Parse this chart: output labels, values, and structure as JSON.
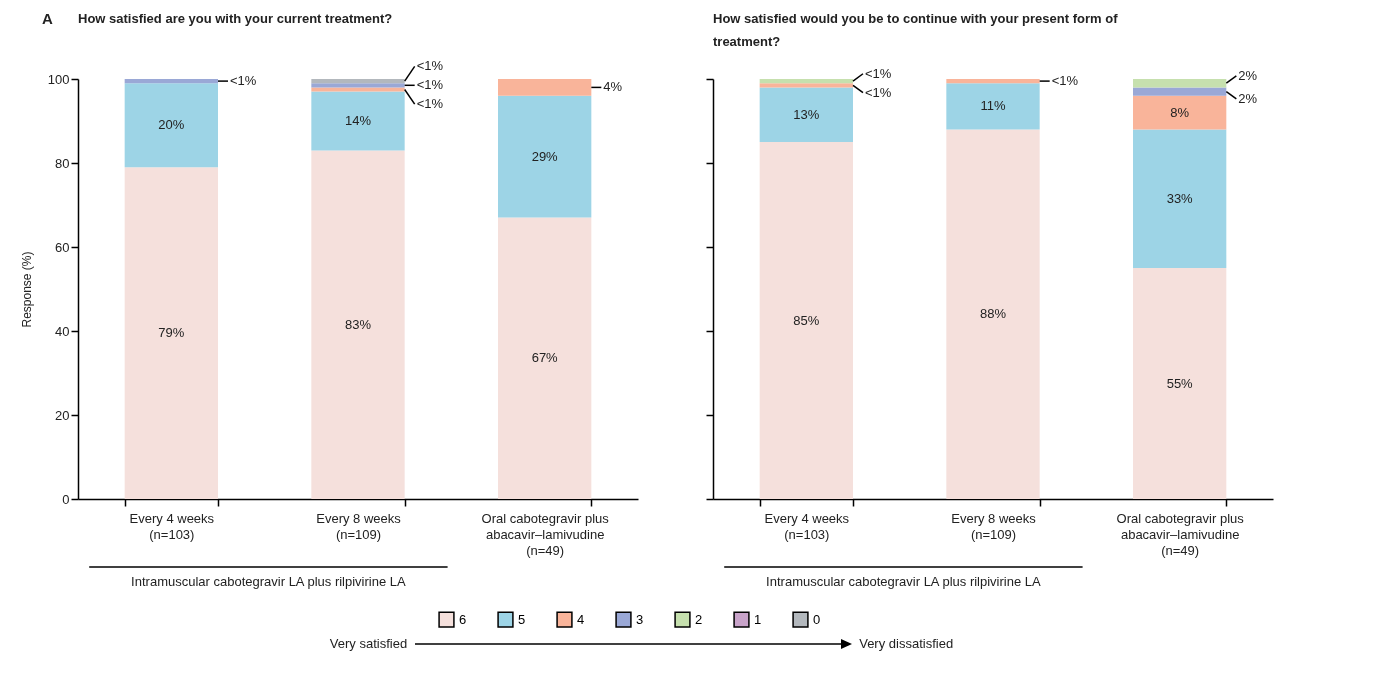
{
  "chart_data": [
    {
      "type": "bar",
      "stacked": true,
      "title": "How satisfied are you with your current treatment?",
      "ylabel": "Response (%)",
      "categories": [
        "Every 4 weeks\n(n=103)",
        "Every 8 weeks\n(n=109)",
        "Oral cabotegravir plus\nabacavir–lamivudine\n(n=49)"
      ],
      "series": [
        {
          "name": "6",
          "color": "#f5e0dc",
          "values": [
            79,
            83,
            67
          ],
          "value_labels": [
            "79%",
            "83%",
            "67%"
          ]
        },
        {
          "name": "5",
          "color": "#9dd4e6",
          "values": [
            20,
            14,
            29
          ],
          "value_labels": [
            "20%",
            "14%",
            "29%"
          ]
        },
        {
          "name": "4",
          "color": "#f9b49a",
          "values": [
            null,
            1,
            4
          ],
          "value_labels": [
            null,
            "<1%",
            "4%"
          ]
        },
        {
          "name": "3",
          "color": "#9aa8d6",
          "values": [
            1,
            1,
            null
          ],
          "value_labels": [
            "<1%",
            "<1%",
            null
          ]
        },
        {
          "name": "2",
          "color": "#c6e0ae",
          "values": [
            null,
            null,
            null
          ]
        },
        {
          "name": "1",
          "color": "#c8a3c9",
          "values": [
            null,
            null,
            null
          ]
        },
        {
          "name": "0",
          "color": "#b3b8bd",
          "values": [
            null,
            1,
            null
          ],
          "value_labels": [
            null,
            "<1%",
            null
          ]
        }
      ],
      "ylim": [
        0,
        100
      ],
      "yticks": [
        0,
        20,
        40,
        60,
        80,
        100
      ],
      "legend": "bottom",
      "annotations": [
        "A",
        "Intramuscular cabotegravir LA plus rilpivirine LA",
        "Very satisfied",
        "Very dissatisfied"
      ]
    },
    {
      "type": "bar",
      "stacked": true,
      "title": "How satisfied would you be to continue with your present form of treatment?",
      "categories": [
        "Every 4 weeks\n(n=103)",
        "Every 8 weeks\n(n=109)",
        "Oral cabotegravir plus\nabacavir–lamivudine\n(n=49)"
      ],
      "series": [
        {
          "color": "#f5e0dc",
          "values": [
            85,
            88,
            55
          ],
          "value_labels": [
            "85%",
            "88%",
            "55%"
          ]
        },
        {
          "color": "#9dd4e6",
          "values": [
            13,
            11,
            33
          ],
          "value_labels": [
            "13%",
            "11%",
            "33%"
          ]
        },
        {
          "color": "#f9b49a",
          "values": [
            1,
            1,
            8
          ],
          "value_labels": [
            "<1%",
            "<1%",
            "8%"
          ]
        },
        {
          "color": "#9aa8d6",
          "values": [
            null,
            null,
            2
          ],
          "value_labels": [
            null,
            null,
            "2%"
          ]
        },
        {
          "color": "#c6e0ae",
          "values": [
            1,
            null,
            2
          ],
          "value_labels": [
            "<1%",
            null,
            "2%"
          ]
        }
      ],
      "ylim": [
        0,
        100
      ],
      "yticks": [
        0,
        20,
        40,
        60,
        80,
        100
      ],
      "tick_labels": "x",
      "annotations": [
        "Intramuscular cabotegravir LA plus rilpivirine LA"
      ]
    }
  ]
}
